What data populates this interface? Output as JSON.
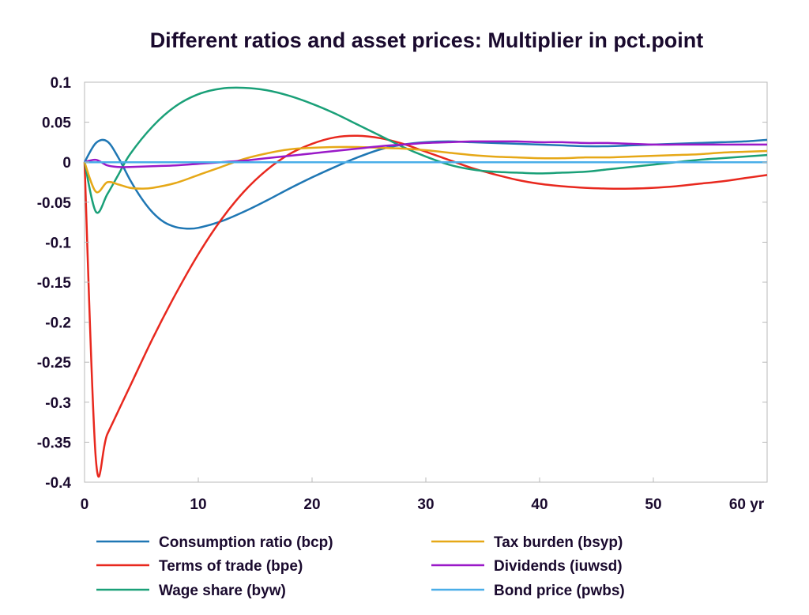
{
  "chart_data": {
    "type": "line",
    "title": "Different ratios and asset prices: Multiplier in pct.point",
    "xlabel": "",
    "ylabel": "",
    "xlim": [
      0,
      60
    ],
    "ylim": [
      -0.4,
      0.1
    ],
    "x_ticks": [
      0,
      10,
      20,
      30,
      40,
      50,
      60
    ],
    "x_tick_labels": [
      "0",
      "10",
      "20",
      "30",
      "40",
      "50",
      "60 yr"
    ],
    "y_ticks": [
      0.1,
      0.05,
      0,
      -0.05,
      -0.1,
      -0.15,
      -0.2,
      -0.25,
      -0.3,
      -0.35,
      -0.4
    ],
    "y_tick_labels": [
      "0.1",
      "0.05",
      "0",
      "-0.05",
      "-0.1",
      "-0.15",
      "-0.2",
      "-0.25",
      "-0.3",
      "-0.35",
      "-0.4"
    ],
    "grid": false,
    "legend_position": "bottom",
    "series": [
      {
        "name": "Consumption ratio (bcp)",
        "color": "#1f77b4",
        "x": [
          0,
          1,
          2,
          3,
          4,
          5,
          6,
          7,
          8,
          9,
          10,
          12,
          14,
          16,
          18,
          20,
          22,
          24,
          26,
          28,
          30,
          32,
          34,
          36,
          38,
          40,
          42,
          44,
          46,
          48,
          50,
          52,
          54,
          56,
          58,
          60
        ],
        "y": [
          0,
          0.024,
          0.026,
          0.005,
          -0.022,
          -0.045,
          -0.063,
          -0.075,
          -0.081,
          -0.083,
          -0.082,
          -0.074,
          -0.062,
          -0.048,
          -0.033,
          -0.019,
          -0.006,
          0.006,
          0.016,
          0.022,
          0.025,
          0.026,
          0.025,
          0.024,
          0.023,
          0.022,
          0.021,
          0.02,
          0.02,
          0.021,
          0.022,
          0.023,
          0.024,
          0.025,
          0.026,
          0.028
        ]
      },
      {
        "name": "Terms of trade (bpe)",
        "color": "#e8281e",
        "x": [
          0,
          1,
          2,
          4,
          6,
          8,
          10,
          12,
          14,
          16,
          18,
          20,
          22,
          24,
          26,
          28,
          30,
          32,
          34,
          36,
          38,
          40,
          42,
          44,
          46,
          48,
          50,
          52,
          54,
          56,
          58,
          60
        ],
        "y": [
          0,
          -0.372,
          -0.34,
          -0.28,
          -0.22,
          -0.165,
          -0.115,
          -0.072,
          -0.037,
          -0.01,
          0.01,
          0.023,
          0.031,
          0.033,
          0.03,
          0.023,
          0.013,
          0.003,
          -0.007,
          -0.015,
          -0.022,
          -0.027,
          -0.03,
          -0.032,
          -0.033,
          -0.033,
          -0.032,
          -0.03,
          -0.027,
          -0.024,
          -0.02,
          -0.016
        ]
      },
      {
        "name": "Wage share (byw)",
        "color": "#1aa078",
        "x": [
          0,
          1,
          2,
          3,
          4,
          6,
          8,
          10,
          12,
          14,
          16,
          18,
          20,
          22,
          24,
          26,
          28,
          30,
          32,
          34,
          36,
          38,
          40,
          42,
          44,
          46,
          48,
          50,
          52,
          54,
          56,
          58,
          60
        ],
        "y": [
          0,
          -0.062,
          -0.04,
          -0.015,
          0.01,
          0.045,
          0.07,
          0.085,
          0.092,
          0.093,
          0.09,
          0.083,
          0.073,
          0.061,
          0.047,
          0.033,
          0.019,
          0.007,
          -0.003,
          -0.009,
          -0.012,
          -0.013,
          -0.014,
          -0.013,
          -0.012,
          -0.009,
          -0.006,
          -0.003,
          0,
          0.003,
          0.005,
          0.007,
          0.009
        ]
      },
      {
        "name": "Tax burden (bsyp)",
        "color": "#e6a817",
        "x": [
          0,
          1,
          2,
          3,
          4,
          5,
          6,
          8,
          10,
          12,
          14,
          16,
          18,
          20,
          22,
          24,
          26,
          28,
          30,
          32,
          34,
          36,
          38,
          40,
          42,
          44,
          46,
          48,
          50,
          52,
          54,
          56,
          58,
          60
        ],
        "y": [
          0,
          -0.037,
          -0.025,
          -0.028,
          -0.032,
          -0.033,
          -0.032,
          -0.026,
          -0.016,
          -0.006,
          0.004,
          0.011,
          0.016,
          0.018,
          0.019,
          0.019,
          0.018,
          0.017,
          0.015,
          0.012,
          0.009,
          0.007,
          0.006,
          0.005,
          0.005,
          0.006,
          0.006,
          0.007,
          0.008,
          0.009,
          0.01,
          0.012,
          0.013,
          0.014
        ]
      },
      {
        "name": "Dividends (iuwsd)",
        "color": "#9a19c8",
        "x": [
          0,
          1,
          2,
          3,
          4,
          6,
          8,
          10,
          12,
          14,
          16,
          18,
          20,
          22,
          24,
          26,
          28,
          30,
          32,
          34,
          36,
          38,
          40,
          42,
          44,
          46,
          48,
          50,
          52,
          54,
          56,
          58,
          60
        ],
        "y": [
          0,
          0.003,
          -0.004,
          -0.006,
          -0.006,
          -0.005,
          -0.004,
          -0.002,
          0,
          0.002,
          0.005,
          0.008,
          0.011,
          0.014,
          0.017,
          0.02,
          0.022,
          0.024,
          0.025,
          0.026,
          0.026,
          0.026,
          0.025,
          0.025,
          0.024,
          0.024,
          0.023,
          0.022,
          0.022,
          0.022,
          0.022,
          0.022,
          0.022
        ]
      },
      {
        "name": "Bond price (pwbs)",
        "color": "#4aaee8",
        "x": [
          0,
          60
        ],
        "y": [
          0,
          0
        ]
      }
    ],
    "zero_line_color": "#0a3060"
  }
}
